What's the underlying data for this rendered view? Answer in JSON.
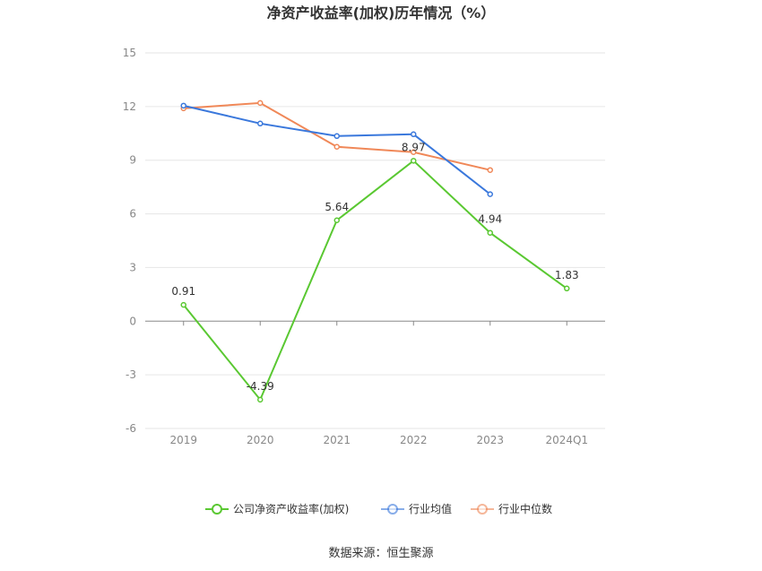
{
  "chart_data": {
    "type": "line",
    "title": "净资产收益率(加权)历年情况（%）",
    "categories": [
      "2019",
      "2020",
      "2021",
      "2022",
      "2023",
      "2024Q1"
    ],
    "ylim": [
      -6,
      15
    ],
    "yticks": [
      -6,
      -3,
      0,
      3,
      6,
      9,
      12,
      15
    ],
    "grid": true,
    "legend_position": "bottom",
    "series": [
      {
        "name": "公司净资产收益率(加权)",
        "color": "#5ac832",
        "values": [
          0.91,
          -4.39,
          5.64,
          8.97,
          4.94,
          1.83
        ],
        "labels": [
          "0.91",
          "-4.39",
          "5.64",
          "8.97",
          "4.94",
          "1.83"
        ]
      },
      {
        "name": "行业均值",
        "color": "#3a78dc",
        "values": [
          12.05,
          11.05,
          10.35,
          10.45,
          7.1,
          null
        ]
      },
      {
        "name": "行业中位数",
        "color": "#f08858",
        "values": [
          11.9,
          12.2,
          9.75,
          9.45,
          8.45,
          null
        ]
      }
    ]
  },
  "source_text": "数据来源：恒生聚源"
}
